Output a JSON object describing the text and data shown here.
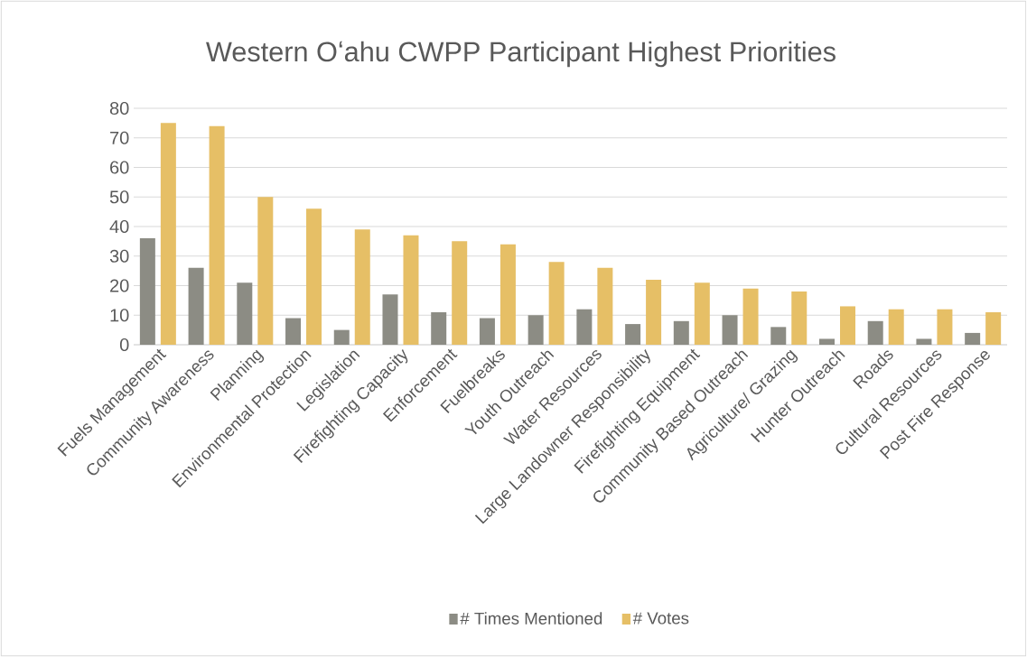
{
  "chart_data": {
    "type": "bar",
    "title": "Western Oʻahu CWPP Participant Highest Priorities",
    "categories": [
      "Fuels Management",
      "Community Awareness",
      "Planning",
      "Environmental Protection",
      "Legislation",
      "Firefighting Capacity",
      "Enforcement",
      "Fuelbreaks",
      "Youth Outreach",
      "Water Resources",
      "Large Landowner Responsibility",
      "Firefighting Equipment",
      "Community Based Outreach",
      "Agriculture/ Grazing",
      "Hunter Outreach",
      "Roads",
      "Cultural Resources",
      "Post Fire Response"
    ],
    "series": [
      {
        "name": "# Times Mentioned",
        "color": "#8c8c84",
        "values": [
          36,
          26,
          21,
          9,
          5,
          17,
          11,
          9,
          10,
          12,
          7,
          8,
          10,
          6,
          2,
          8,
          2,
          4
        ]
      },
      {
        "name": "# Votes",
        "color": "#e6bf66",
        "values": [
          75,
          74,
          50,
          46,
          39,
          37,
          35,
          34,
          28,
          26,
          22,
          21,
          19,
          18,
          13,
          12,
          12,
          11
        ]
      }
    ],
    "ylim": [
      0,
      80
    ],
    "yticks": [
      0,
      10,
      20,
      30,
      40,
      50,
      60,
      70,
      80
    ],
    "grid": "y",
    "legend": "bottom"
  }
}
